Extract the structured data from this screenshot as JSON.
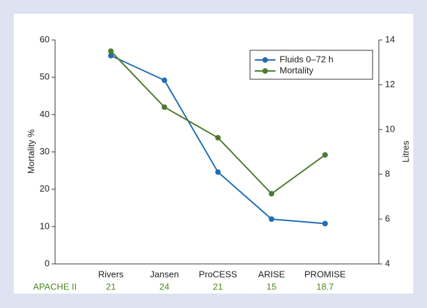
{
  "chart_data": {
    "type": "line",
    "categories": [
      "Rivers",
      "Jansen",
      "ProCESS",
      "ARISE",
      "PROMISE"
    ],
    "series": [
      {
        "name": "Fluids 0–72 h",
        "color": "#1f6db3",
        "axis": "y2",
        "values": [
          13.3,
          12.2,
          8.1,
          6.0,
          5.8
        ]
      },
      {
        "name": "Mortality",
        "color": "#4d7a2e",
        "values": [
          57,
          42,
          33.8,
          18.8,
          29.2
        ]
      }
    ],
    "ylabel": "Mortality %",
    "ylim": [
      0,
      60
    ],
    "yticks": [
      0,
      10,
      20,
      30,
      40,
      50,
      60
    ],
    "y2label": "Litres",
    "y2lim": [
      4,
      14
    ],
    "y2ticks": [
      4,
      6,
      8,
      10,
      12,
      14
    ],
    "legend": "upper right",
    "apache": {
      "label": "APACHE II",
      "color": "#4d8a1e",
      "values": [
        21,
        24,
        21,
        15,
        18.7
      ]
    }
  }
}
